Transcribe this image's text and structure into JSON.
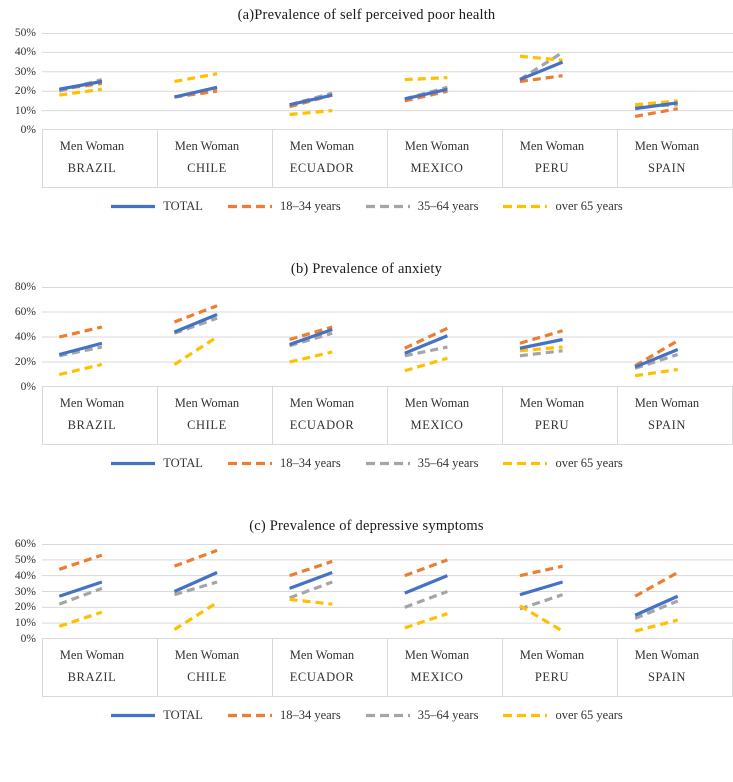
{
  "figure": {
    "background": "#ffffff",
    "gridline_color": "#d9d9d9",
    "text_color": "#333333"
  },
  "countries": [
    "BRAZIL",
    "CHILE",
    "ECUADOR",
    "MEXICO",
    "PERU",
    "SPAIN"
  ],
  "sex_categories": [
    "Men",
    "Woman"
  ],
  "legend": [
    {
      "label": "TOTAL",
      "color": "#4472C4",
      "dashed": false
    },
    {
      "label": "18–34 years",
      "color": "#ED7D31",
      "dashed": true
    },
    {
      "label": "35–64 years",
      "color": "#A5A5A5",
      "dashed": true
    },
    {
      "label": "over 65 years",
      "color": "#FFC000",
      "dashed": true
    }
  ],
  "chart_data": [
    {
      "type": "line",
      "title": "(a)Prevalence of self perceived poor health",
      "x_categories": [
        "Men",
        "Woman"
      ],
      "group_categories": [
        "BRAZIL",
        "CHILE",
        "ECUADOR",
        "MEXICO",
        "PERU",
        "SPAIN"
      ],
      "ylim": [
        0,
        50
      ],
      "ytick_step": 10,
      "ytick_labels": [
        "50%",
        "40%",
        "30%",
        "20%",
        "10%",
        "0%"
      ],
      "grid": true,
      "legend_position": "bottom",
      "series": [
        {
          "name": "TOTAL",
          "color": "#4472C4",
          "dashed": false,
          "values": [
            [
              21,
              25
            ],
            [
              17,
              22
            ],
            [
              13,
              18
            ],
            [
              16,
              21
            ],
            [
              26,
              35
            ],
            [
              11,
              14
            ]
          ]
        },
        {
          "name": "18–34 years",
          "color": "#ED7D31",
          "dashed": true,
          "values": [
            [
              21,
              24
            ],
            [
              17,
              20
            ],
            [
              12,
              18
            ],
            [
              15,
              20
            ],
            [
              25,
              28
            ],
            [
              7,
              11
            ]
          ]
        },
        {
          "name": "35–64 years",
          "color": "#A5A5A5",
          "dashed": true,
          "values": [
            [
              20,
              26
            ],
            [
              17,
              21
            ],
            [
              13,
              19
            ],
            [
              16,
              22
            ],
            [
              26,
              40
            ],
            [
              12,
              13
            ]
          ]
        },
        {
          "name": "over 65 years",
          "color": "#FFC000",
          "dashed": true,
          "values": [
            [
              18,
              21
            ],
            [
              25,
              29
            ],
            [
              8,
              10
            ],
            [
              26,
              27
            ],
            [
              38,
              36
            ],
            [
              13,
              15
            ]
          ]
        }
      ]
    },
    {
      "type": "line",
      "title": "(b) Prevalence of anxiety",
      "x_categories": [
        "Men",
        "Woman"
      ],
      "group_categories": [
        "BRAZIL",
        "CHILE",
        "ECUADOR",
        "MEXICO",
        "PERU",
        "SPAIN"
      ],
      "ylim": [
        0,
        80
      ],
      "ytick_step": 20,
      "ytick_labels": [
        "80%",
        "60%",
        "40%",
        "20%",
        "0%"
      ],
      "grid": true,
      "legend_position": "bottom",
      "series": [
        {
          "name": "TOTAL",
          "color": "#4472C4",
          "dashed": false,
          "values": [
            [
              26,
              35
            ],
            [
              44,
              58
            ],
            [
              34,
              46
            ],
            [
              27,
              41
            ],
            [
              31,
              38
            ],
            [
              16,
              30
            ]
          ]
        },
        {
          "name": "18–34 years",
          "color": "#ED7D31",
          "dashed": true,
          "values": [
            [
              40,
              48
            ],
            [
              52,
              65
            ],
            [
              38,
              48
            ],
            [
              31,
              47
            ],
            [
              35,
              45
            ],
            [
              17,
              37
            ]
          ]
        },
        {
          "name": "35–64 years",
          "color": "#A5A5A5",
          "dashed": true,
          "values": [
            [
              25,
              32
            ],
            [
              43,
              55
            ],
            [
              33,
              43
            ],
            [
              25,
              32
            ],
            [
              25,
              29
            ],
            [
              15,
              26
            ]
          ]
        },
        {
          "name": "over 65 years",
          "color": "#FFC000",
          "dashed": true,
          "values": [
            [
              10,
              18
            ],
            [
              18,
              40
            ],
            [
              20,
              28
            ],
            [
              13,
              23
            ],
            [
              29,
              32
            ],
            [
              9,
              14
            ]
          ]
        }
      ]
    },
    {
      "type": "line",
      "title": "(c) Prevalence of depressive symptoms",
      "x_categories": [
        "Men",
        "Woman"
      ],
      "group_categories": [
        "BRAZIL",
        "CHILE",
        "ECUADOR",
        "MEXICO",
        "PERU",
        "SPAIN"
      ],
      "ylim": [
        0,
        60
      ],
      "ytick_step": 10,
      "ytick_labels": [
        "60%",
        "50%",
        "40%",
        "30%",
        "20%",
        "10%",
        "0%"
      ],
      "grid": true,
      "legend_position": "bottom",
      "series": [
        {
          "name": "TOTAL",
          "color": "#4472C4",
          "dashed": false,
          "values": [
            [
              27,
              36
            ],
            [
              30,
              42
            ],
            [
              32,
              42
            ],
            [
              29,
              40
            ],
            [
              28,
              36
            ],
            [
              15,
              27
            ]
          ]
        },
        {
          "name": "18–34 years",
          "color": "#ED7D31",
          "dashed": true,
          "values": [
            [
              44,
              53
            ],
            [
              46,
              56
            ],
            [
              40,
              49
            ],
            [
              40,
              50
            ],
            [
              40,
              46
            ],
            [
              27,
              42
            ]
          ]
        },
        {
          "name": "35–64 years",
          "color": "#A5A5A5",
          "dashed": true,
          "values": [
            [
              22,
              32
            ],
            [
              28,
              36
            ],
            [
              26,
              36
            ],
            [
              20,
              30
            ],
            [
              19,
              28
            ],
            [
              13,
              24
            ]
          ]
        },
        {
          "name": "over 65 years",
          "color": "#FFC000",
          "dashed": true,
          "values": [
            [
              8,
              17
            ],
            [
              6,
              23
            ],
            [
              25,
              22
            ],
            [
              7,
              16
            ],
            [
              21,
              5
            ],
            [
              5,
              12
            ]
          ]
        }
      ]
    }
  ]
}
